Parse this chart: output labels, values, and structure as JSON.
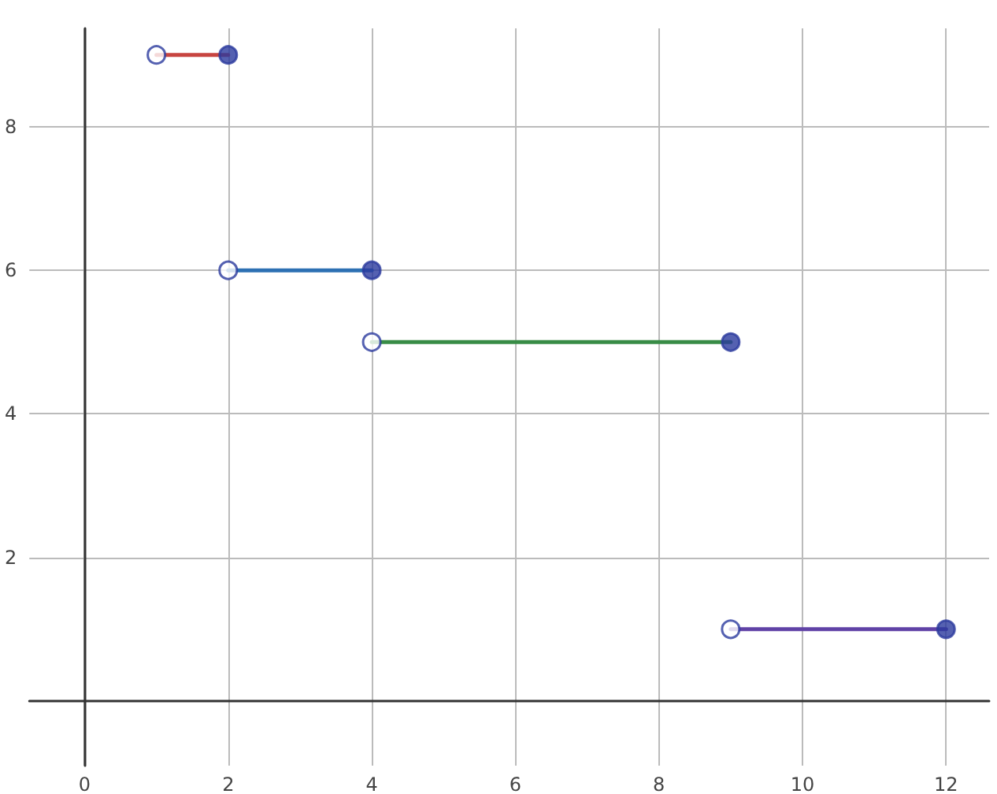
{
  "chart_data": {
    "type": "line",
    "xlim": [
      -0.77,
      12.6
    ],
    "ylim": [
      -0.9,
      9.37
    ],
    "xticks": [
      0,
      2,
      4,
      6,
      8,
      10,
      12
    ],
    "yticks": [
      2,
      4,
      6,
      8
    ],
    "grid": true,
    "marker": "none",
    "series": [
      {
        "color": "#c74440",
        "x": [
          1,
          2
        ],
        "values": [
          9,
          9
        ]
      },
      {
        "color": "#2d70b3",
        "x": [
          2,
          4
        ],
        "values": [
          6,
          6
        ]
      },
      {
        "color": "#388c46",
        "x": [
          4,
          9
        ],
        "values": [
          5,
          5
        ]
      },
      {
        "color": "#6042a6",
        "x": [
          9,
          12
        ],
        "values": [
          1,
          1
        ]
      },
      {
        "type": "scatter",
        "marker": "circle",
        "color": "#ffffff",
        "x": [
          1,
          2,
          4,
          9
        ],
        "values": [
          9,
          6,
          5,
          1
        ]
      },
      {
        "type": "scatter",
        "marker": "circle",
        "color": "#2b3a9e",
        "x": [
          2,
          4,
          9,
          12
        ],
        "values": [
          9,
          6,
          5,
          1
        ]
      }
    ]
  }
}
